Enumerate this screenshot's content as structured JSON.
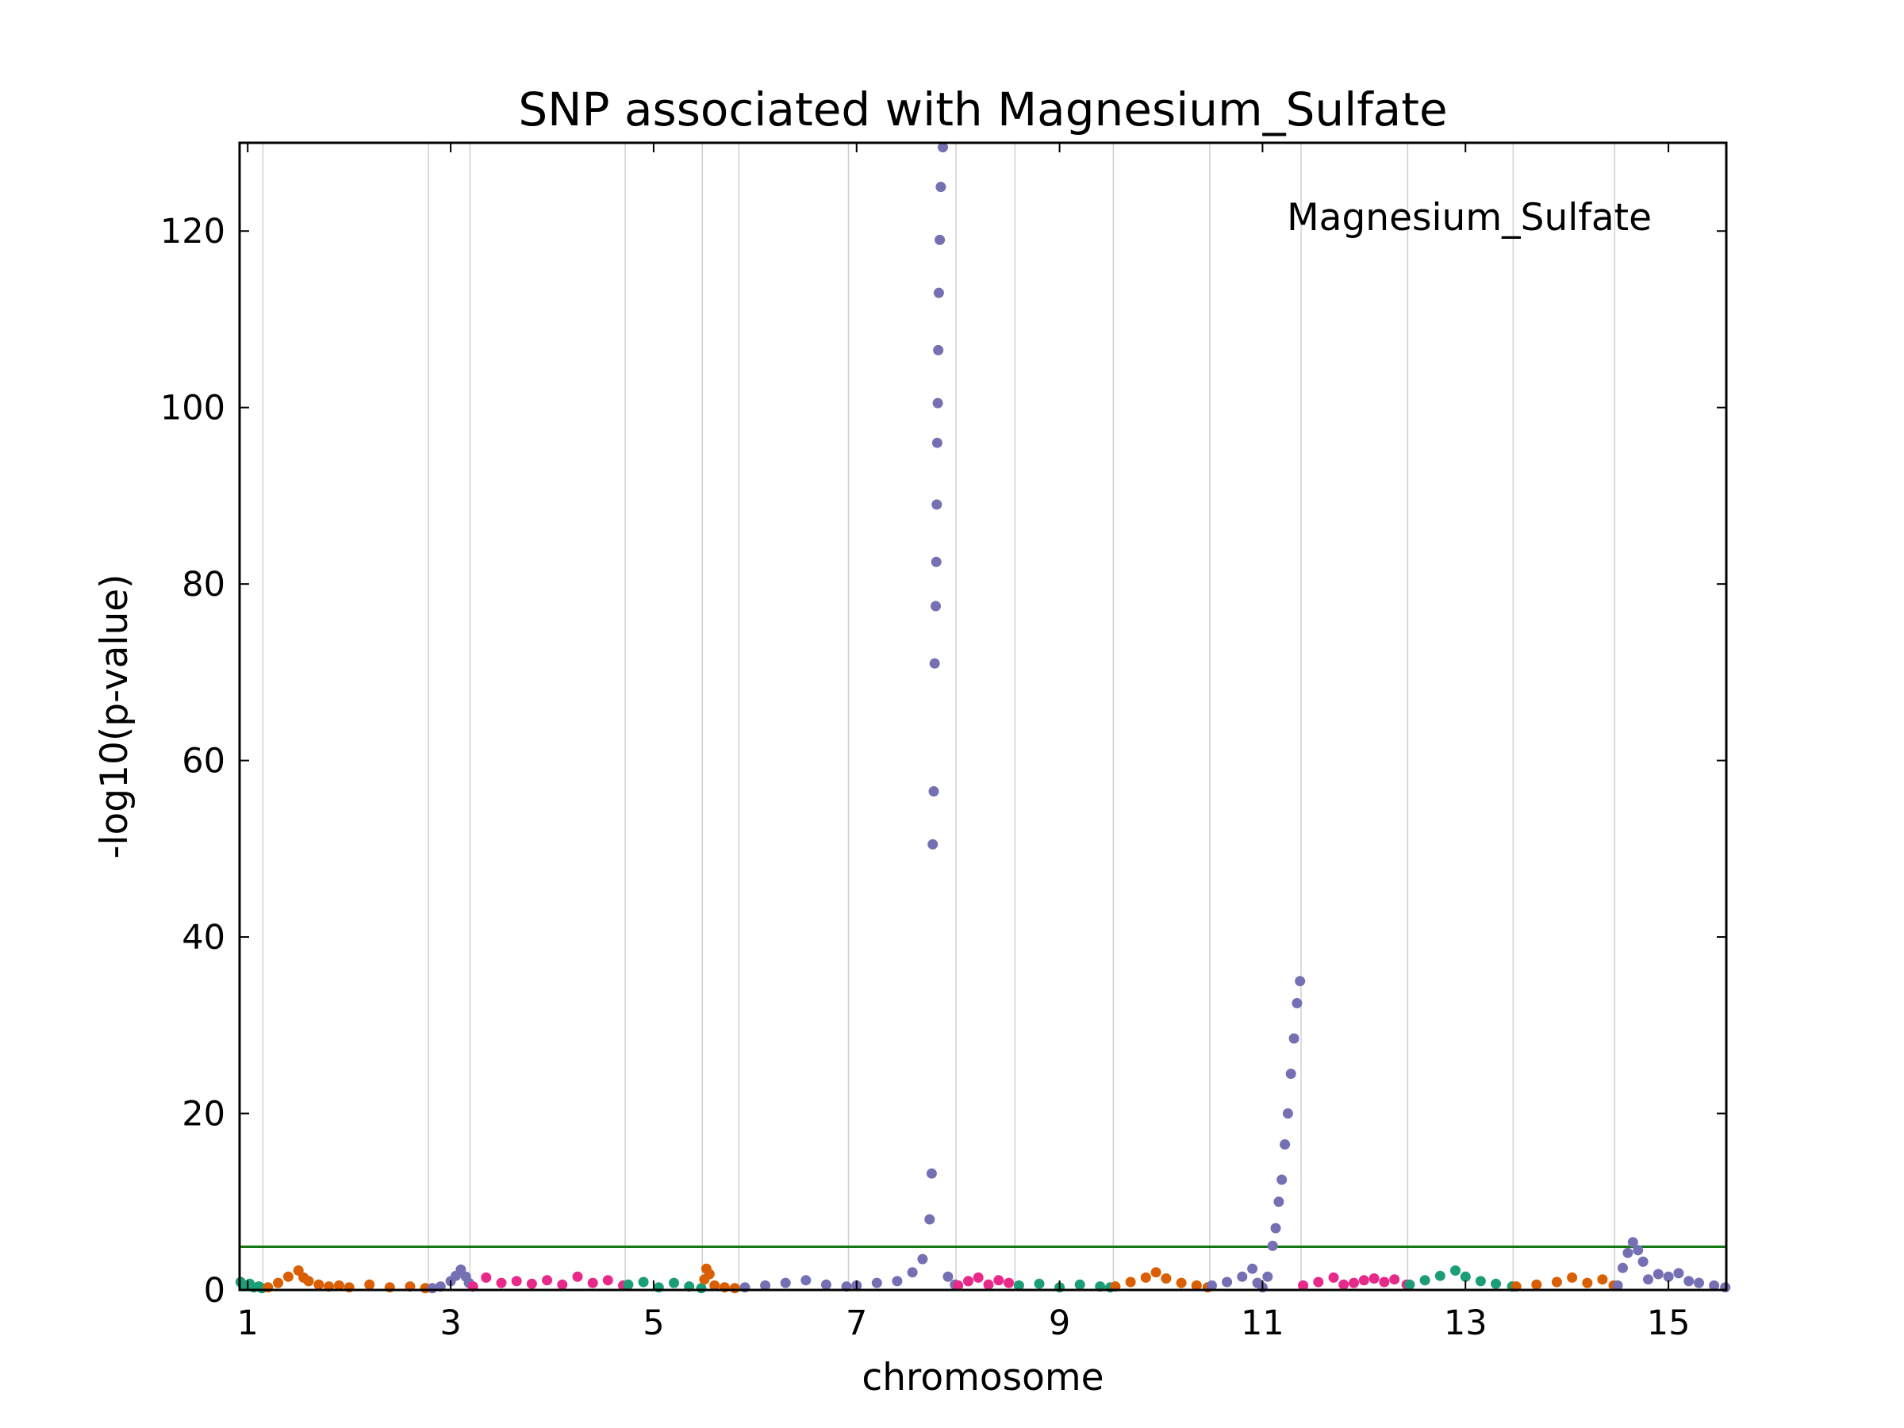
{
  "chart_data": {
    "type": "scatter",
    "title": "SNP associated with Magnesium_Sulfate",
    "xlabel": "chromosome",
    "ylabel": "-log10(p-value)",
    "ylim": [
      0,
      130
    ],
    "xlim": [
      0.92,
      15.57
    ],
    "x_tick_labels": [
      "1",
      "3",
      "5",
      "7",
      "9",
      "11",
      "13",
      "15"
    ],
    "x_ticks": [
      1,
      3,
      5,
      7,
      9,
      11,
      13,
      15
    ],
    "y_ticks": [
      0,
      20,
      40,
      60,
      80,
      100,
      120
    ],
    "legend": {
      "text": "Magnesium_Sulfate",
      "position": "top-right"
    },
    "threshold": {
      "value": 4.9,
      "color": "#137a13"
    },
    "chromosome_boundaries": [
      1.15,
      2.78,
      3.19,
      4.72,
      5.48,
      5.84,
      6.92,
      7.98,
      8.56,
      9.53,
      10.48,
      11.38,
      12.43,
      13.47,
      14.47
    ],
    "grid": "vertical",
    "colors": {
      "teal": "#1b9e77",
      "orange": "#d95f02",
      "purple": "#7570b3",
      "pink": "#e7298a"
    },
    "series": [
      {
        "chromosome": "1",
        "color": "#1b9e77",
        "x": [
          0.93,
          0.97,
          1.02,
          1.06,
          1.11,
          1.14
        ],
        "y": [
          0.9,
          0.5,
          0.7,
          0.3,
          0.4,
          0.2
        ]
      },
      {
        "chromosome": "2",
        "color": "#d95f02",
        "x": [
          1.2,
          1.3,
          1.4,
          1.5,
          1.55,
          1.6,
          1.7,
          1.8,
          1.9,
          2.0,
          2.2,
          2.4,
          2.6,
          2.75
        ],
        "y": [
          0.3,
          0.8,
          1.5,
          2.2,
          1.4,
          1.0,
          0.6,
          0.4,
          0.5,
          0.3,
          0.6,
          0.3,
          0.4,
          0.2
        ]
      },
      {
        "chromosome": "3",
        "color": "#7570b3",
        "x": [
          2.82,
          2.9,
          3.0,
          3.05,
          3.1,
          3.15,
          3.18
        ],
        "y": [
          0.2,
          0.4,
          1.0,
          1.6,
          2.3,
          1.5,
          0.8
        ]
      },
      {
        "chromosome": "4",
        "color": "#e7298a",
        "x": [
          3.22,
          3.35,
          3.5,
          3.65,
          3.8,
          3.95,
          4.1,
          4.25,
          4.4,
          4.55,
          4.7
        ],
        "y": [
          0.4,
          1.4,
          0.8,
          1.0,
          0.7,
          1.1,
          0.6,
          1.5,
          0.8,
          1.1,
          0.5
        ]
      },
      {
        "chromosome": "5",
        "color": "#1b9e77",
        "x": [
          4.75,
          4.9,
          5.05,
          5.2,
          5.35,
          5.47
        ],
        "y": [
          0.6,
          0.9,
          0.3,
          0.8,
          0.4,
          0.2
        ]
      },
      {
        "chromosome": "6",
        "color": "#d95f02",
        "x": [
          5.5,
          5.52,
          5.55,
          5.6,
          5.7,
          5.8
        ],
        "y": [
          1.2,
          2.4,
          1.8,
          0.5,
          0.3,
          0.2
        ]
      },
      {
        "chromosome": "7",
        "color": "#7570b3",
        "x": [
          5.9,
          6.1,
          6.3,
          6.5,
          6.7,
          6.9
        ],
        "y": [
          0.3,
          0.5,
          0.8,
          1.1,
          0.6,
          0.4
        ]
      },
      {
        "chromosome": "8",
        "color": "#7570b3",
        "x": [
          7.0,
          7.2,
          7.4,
          7.55,
          7.65,
          7.72,
          7.74,
          7.75,
          7.76,
          7.77,
          7.78,
          7.785,
          7.79,
          7.795,
          7.8,
          7.805,
          7.81,
          7.82,
          7.83,
          7.85,
          7.9,
          7.97
        ],
        "y": [
          0.5,
          0.8,
          1.0,
          2.0,
          3.5,
          8.0,
          13.2,
          50.5,
          56.5,
          71.0,
          77.5,
          82.5,
          89.0,
          96.0,
          100.5,
          106.5,
          113.0,
          119.0,
          125.0,
          129.5,
          1.5,
          0.6
        ]
      },
      {
        "chromosome": "9",
        "color": "#e7298a",
        "x": [
          8.0,
          8.1,
          8.2,
          8.3,
          8.4,
          8.5
        ],
        "y": [
          0.5,
          1.0,
          1.4,
          0.6,
          1.1,
          0.8
        ]
      },
      {
        "chromosome": "10",
        "color": "#1b9e77",
        "x": [
          8.6,
          8.8,
          9.0,
          9.2,
          9.4,
          9.5
        ],
        "y": [
          0.5,
          0.7,
          0.3,
          0.6,
          0.4,
          0.3
        ]
      },
      {
        "chromosome": "11",
        "color": "#d95f02",
        "x": [
          9.55,
          9.7,
          9.85,
          9.95,
          10.05,
          10.2,
          10.35,
          10.46
        ],
        "y": [
          0.4,
          0.9,
          1.4,
          2.0,
          1.3,
          0.8,
          0.5,
          0.3
        ]
      },
      {
        "chromosome": "12",
        "color": "#7570b3",
        "x": [
          10.5,
          10.65,
          10.8,
          10.9,
          10.95,
          11.0,
          11.05,
          11.1,
          11.13,
          11.16,
          11.19,
          11.22,
          11.25,
          11.28,
          11.31,
          11.34,
          11.37
        ],
        "y": [
          0.5,
          0.9,
          1.5,
          2.4,
          0.8,
          0.3,
          1.5,
          5.0,
          7.0,
          10.0,
          12.5,
          16.5,
          20.0,
          24.5,
          28.5,
          32.5,
          35.0
        ]
      },
      {
        "chromosome": "13",
        "color": "#e7298a",
        "x": [
          11.4,
          11.55,
          11.7,
          11.8,
          11.9,
          12.0,
          12.1,
          12.2,
          12.3,
          12.42
        ],
        "y": [
          0.5,
          0.9,
          1.4,
          0.6,
          0.8,
          1.1,
          1.3,
          0.9,
          1.2,
          0.6
        ]
      },
      {
        "chromosome": "14",
        "color": "#1b9e77",
        "x": [
          12.45,
          12.6,
          12.75,
          12.9,
          13.0,
          13.15,
          13.3,
          13.46
        ],
        "y": [
          0.6,
          1.1,
          1.6,
          2.2,
          1.5,
          1.0,
          0.7,
          0.4
        ]
      },
      {
        "chromosome": "15",
        "color": "#d95f02",
        "x": [
          13.5,
          13.7,
          13.9,
          14.05,
          14.2,
          14.35,
          14.46
        ],
        "y": [
          0.4,
          0.6,
          0.9,
          1.4,
          0.8,
          1.2,
          0.5
        ]
      },
      {
        "chromosome": "16",
        "color": "#7570b3",
        "x": [
          14.5,
          14.55,
          14.6,
          14.65,
          14.7,
          14.75,
          14.8,
          14.9,
          15.0,
          15.1,
          15.2,
          15.3,
          15.45,
          15.56
        ],
        "y": [
          0.5,
          2.5,
          4.2,
          5.4,
          4.5,
          3.2,
          1.2,
          1.8,
          1.5,
          1.9,
          1.0,
          0.8,
          0.5,
          0.3
        ]
      }
    ]
  }
}
